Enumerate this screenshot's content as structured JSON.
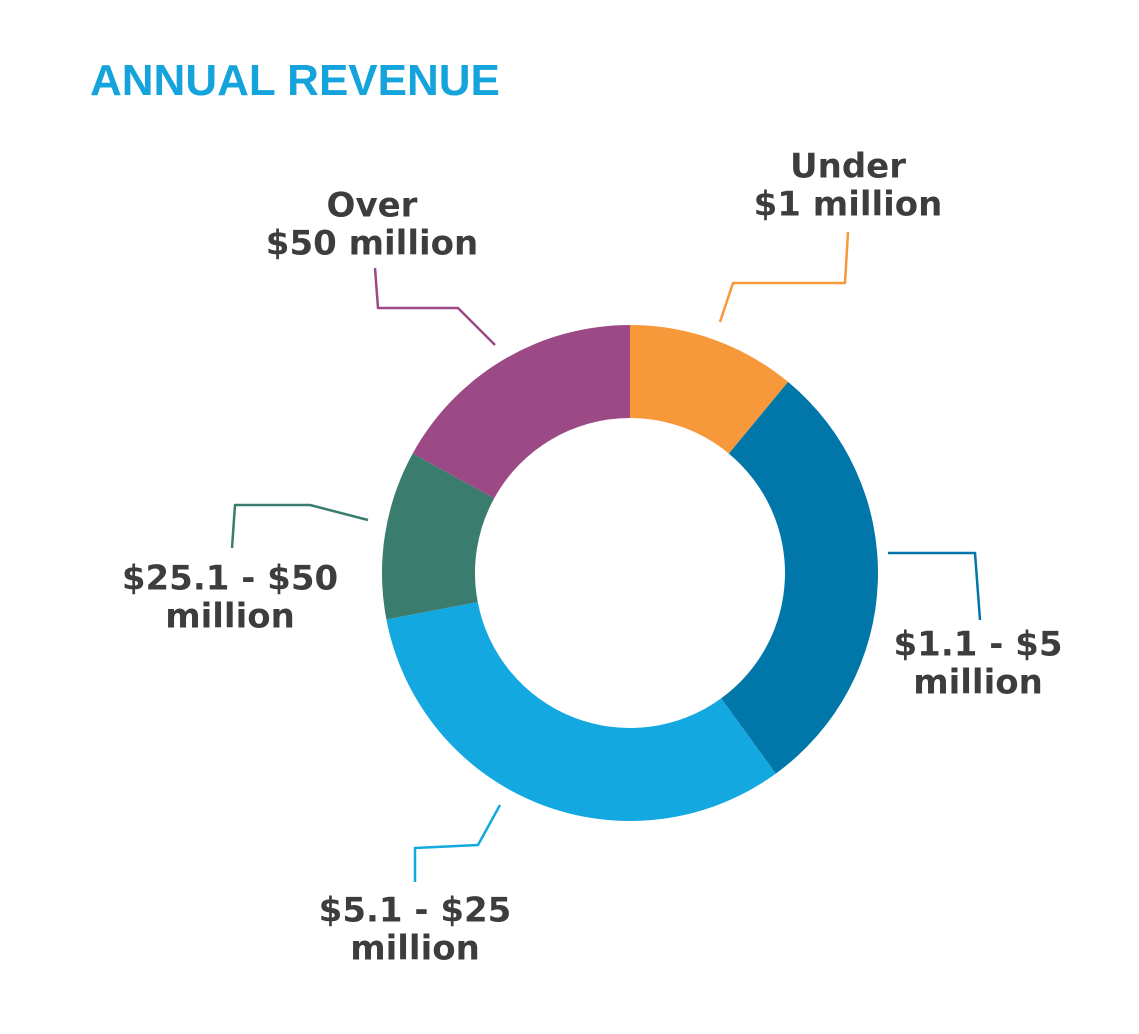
{
  "chart_data": {
    "type": "donut",
    "title": "ANNUAL REVENUE",
    "categories": [
      [
        "Under",
        "$1 million"
      ],
      [
        "$1.1 - $5",
        "million"
      ],
      [
        "$5.1 - $25",
        "million"
      ],
      [
        "$25.1 - $50",
        "million"
      ],
      [
        "Over",
        "$50 million"
      ]
    ],
    "values": [
      11,
      29,
      32,
      11,
      17
    ],
    "colors": [
      "#f7993a",
      "#0077a8",
      "#14a8e0",
      "#3a7d6e",
      "#9b4a86"
    ]
  }
}
